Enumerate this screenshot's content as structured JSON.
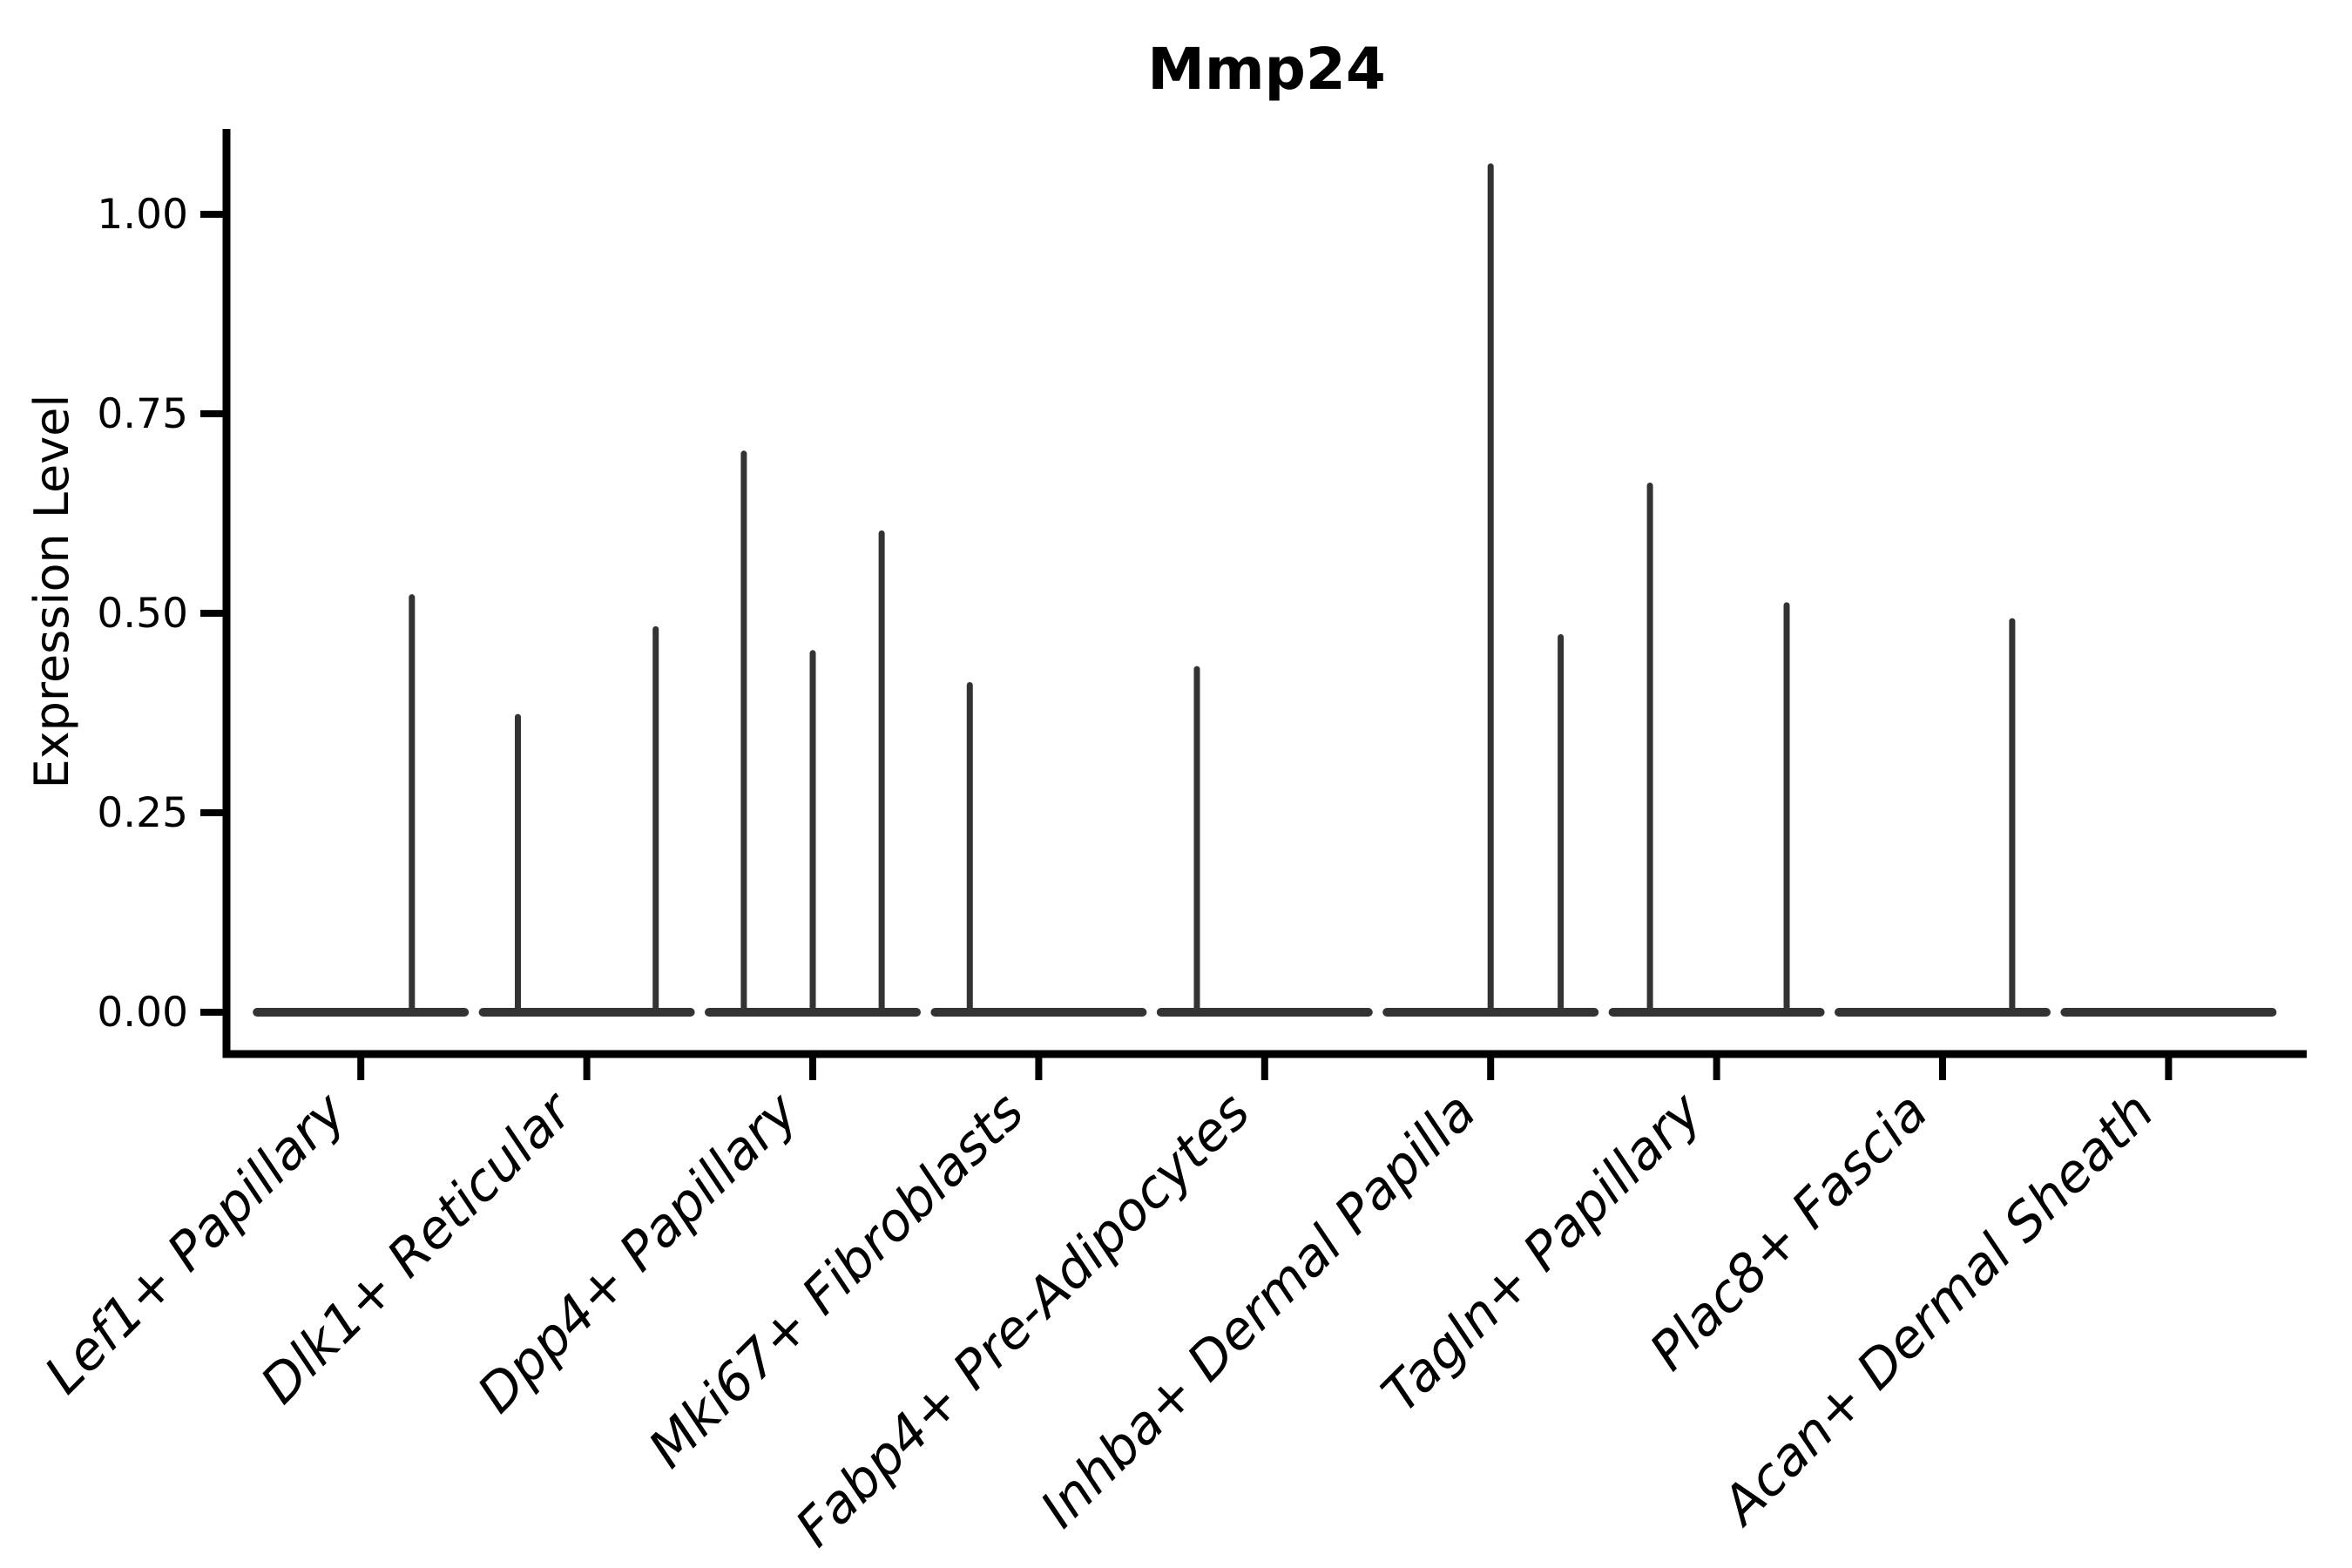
{
  "title": "Mmp24",
  "y_axis": {
    "label": "Expression Level",
    "tick_labels": [
      "0.00",
      "0.25",
      "0.50",
      "0.75",
      "1.00"
    ]
  },
  "colors": {
    "violin": "#333333",
    "axis": "#000000",
    "text": "#000000",
    "background": "#ffffff"
  },
  "chart_data": {
    "type": "violin",
    "title": "Mmp24",
    "xlabel": "",
    "ylabel": "Expression Level",
    "ylim": [
      0,
      1.107
    ],
    "yticks": [
      0,
      0.25,
      0.5,
      0.75,
      1.0
    ],
    "ytick_labels": [
      "0.00",
      "0.25",
      "0.50",
      "0.75",
      "1.00"
    ],
    "grid": false,
    "legend": "none",
    "categories": [
      "Lef1+ Papillary",
      "Dlk1+ Reticular",
      "Dpp4+ Papillary",
      "Mki67+ Fibroblasts",
      "Fabp4+ Pre-Adipocytes",
      "Inhba+ Dermal Papilla",
      "Tagln+ Papillary",
      "Plac8+ Fascia",
      "Acan+ Dermal Sheath"
    ],
    "description": "Each category shows a violin collapsed to a flat base at expression 0 with thin vertical density spikes; spike offset is the horizontal position within the category (fraction of category spacing) and value is the maximum expression level reached.",
    "violins": [
      {
        "category": "Lef1+ Papillary",
        "spikes": [
          {
            "offset": 0.226,
            "value": 0.52
          }
        ]
      },
      {
        "category": "Dlk1+ Reticular",
        "spikes": [
          {
            "offset": -0.305,
            "value": 0.37
          },
          {
            "offset": 0.305,
            "value": 0.48
          }
        ]
      },
      {
        "category": "Dpp4+ Papillary",
        "spikes": [
          {
            "offset": -0.305,
            "value": 0.7
          },
          {
            "offset": 0.0,
            "value": 0.45
          },
          {
            "offset": 0.305,
            "value": 0.6
          }
        ]
      },
      {
        "category": "Mki67+ Fibroblasts",
        "spikes": [
          {
            "offset": -0.305,
            "value": 0.41
          }
        ]
      },
      {
        "category": "Fabp4+ Pre-Adipocytes",
        "spikes": [
          {
            "offset": -0.3,
            "value": 0.43
          }
        ]
      },
      {
        "category": "Inhba+ Dermal Papilla",
        "spikes": [
          {
            "offset": 0.0,
            "value": 1.06
          },
          {
            "offset": 0.31,
            "value": 0.47
          }
        ]
      },
      {
        "category": "Tagln+ Papillary",
        "spikes": [
          {
            "offset": -0.295,
            "value": 0.66
          },
          {
            "offset": 0.31,
            "value": 0.51
          }
        ]
      },
      {
        "category": "Plac8+ Fascia",
        "spikes": [
          {
            "offset": 0.308,
            "value": 0.49
          }
        ]
      },
      {
        "category": "Acan+ Dermal Sheath",
        "spikes": []
      }
    ]
  }
}
